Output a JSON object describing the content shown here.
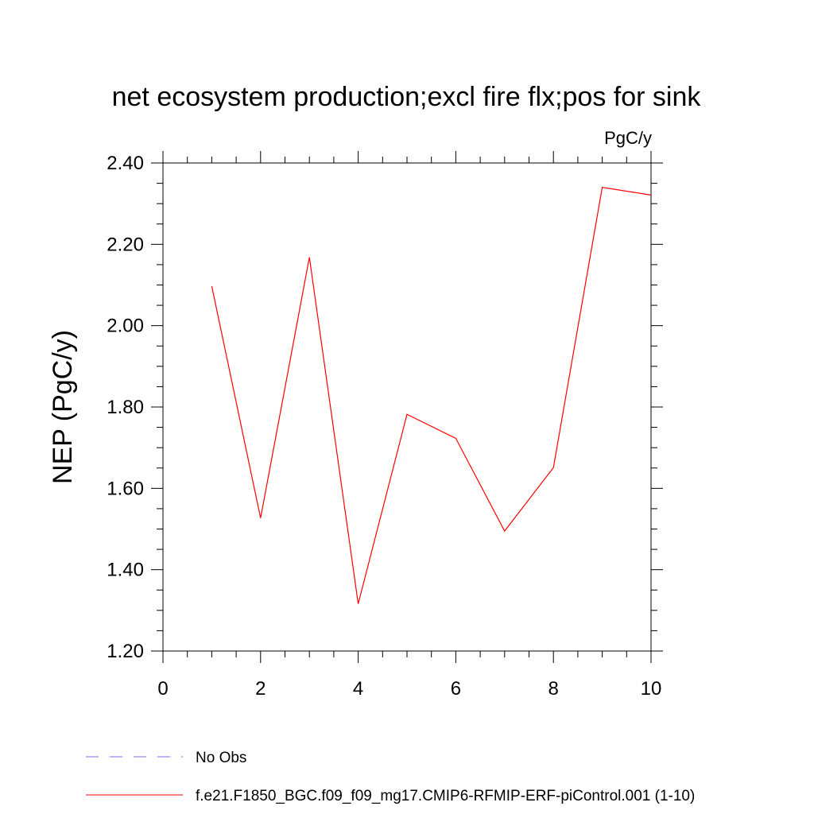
{
  "chart_data": {
    "type": "line",
    "title": "net ecosystem production;excl fire flx;pos for sink",
    "units_label": "PgC/y",
    "ylabel": "NEP  (PgC/y)",
    "xlabel": "",
    "xlim": [
      0,
      10
    ],
    "ylim": [
      1.2,
      2.4
    ],
    "x_ticks": [
      "0",
      "2",
      "4",
      "6",
      "8",
      "10"
    ],
    "y_ticks": [
      "1.20",
      "1.40",
      "1.60",
      "1.80",
      "2.00",
      "2.20",
      "2.40"
    ],
    "grid": false,
    "legend_position": "bottom",
    "series": [
      {
        "name": "f.e21.F1850_BGC.f09_f09_mg17.CMIP6-RFMIP-ERF-piControl.001 (1-10)",
        "color": "#ff0000",
        "x": [
          1,
          2,
          3,
          4,
          5,
          6,
          7,
          8,
          9,
          10
        ],
        "y": [
          2.097,
          1.527,
          2.168,
          1.316,
          1.782,
          1.723,
          1.495,
          1.651,
          2.34,
          2.321
        ]
      }
    ],
    "legend_entries": [
      {
        "label": "No Obs",
        "color": "#7b68ee",
        "style": "dashed"
      },
      {
        "label": "f.e21.F1850_BGC.f09_f09_mg17.CMIP6-RFMIP-ERF-piControl.001 (1-10)",
        "color": "#ff0000",
        "style": "solid"
      }
    ]
  }
}
